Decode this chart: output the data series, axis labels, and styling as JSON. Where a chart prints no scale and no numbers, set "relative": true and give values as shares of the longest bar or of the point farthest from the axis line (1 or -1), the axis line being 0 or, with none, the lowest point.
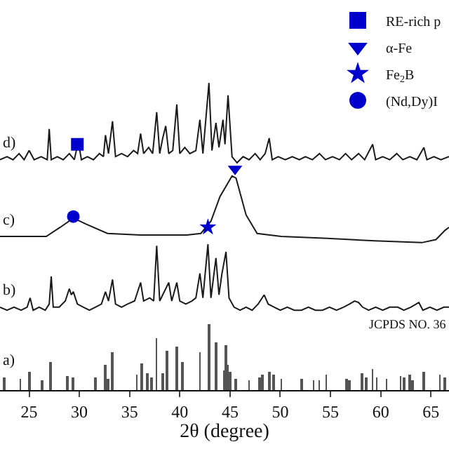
{
  "chart_data": {
    "type": "line",
    "relative": true,
    "xlabel": "2θ (degree)",
    "xlim": [
      22.1,
      66.8
    ],
    "xticks": [
      25,
      30,
      35,
      40,
      45,
      50,
      55,
      60,
      65
    ],
    "legend": "top right",
    "series": [
      {
        "name": "d)",
        "color": "#1a1a1a",
        "x": [
          22.1,
          22.8,
          23.4,
          24.0,
          24.5,
          25.0,
          25.5,
          26.2,
          26.8,
          27.0,
          27.2,
          27.8,
          28.4,
          29.0,
          29.5,
          29.9,
          30.2,
          30.8,
          31.4,
          32.0,
          32.4,
          32.6,
          32.9,
          33.3,
          33.6,
          34.2,
          34.8,
          35.4,
          35.8,
          36.1,
          36.4,
          36.9,
          37.3,
          37.7,
          38.0,
          38.3,
          38.6,
          38.9,
          39.3,
          39.7,
          40.0,
          40.5,
          41.0,
          41.6,
          42.0,
          42.3,
          42.9,
          43.2,
          43.6,
          43.9,
          44.3,
          44.5,
          44.8,
          45.2,
          45.7,
          46.3,
          46.9,
          47.5,
          48.0,
          48.5,
          48.9,
          49.2,
          49.8,
          50.5,
          51.2,
          51.9,
          52.5,
          53.2,
          53.9,
          54.5,
          55.2,
          55.9,
          56.5,
          57.1,
          57.8,
          58.4,
          59.2,
          59.5,
          60.2,
          60.9,
          61.6,
          62.2,
          62.9,
          63.6,
          64.3,
          64.6,
          65.3,
          66.0,
          66.8
        ],
        "values": [
          0.75,
          0.76,
          0.75,
          0.77,
          0.75,
          0.78,
          0.75,
          0.76,
          0.75,
          0.85,
          0.75,
          0.76,
          0.75,
          0.77,
          0.75,
          0.81,
          0.75,
          0.76,
          0.75,
          0.77,
          0.76,
          0.83,
          0.77,
          0.875,
          0.76,
          0.77,
          0.76,
          0.78,
          0.77,
          0.835,
          0.77,
          0.79,
          0.77,
          0.905,
          0.77,
          0.82,
          0.86,
          0.77,
          0.78,
          0.93,
          0.77,
          0.79,
          0.77,
          0.78,
          0.88,
          0.77,
          1.0,
          0.78,
          0.87,
          0.79,
          0.88,
          0.8,
          0.96,
          0.76,
          0.74,
          0.76,
          0.75,
          0.77,
          0.75,
          0.77,
          0.82,
          0.75,
          0.76,
          0.75,
          0.76,
          0.75,
          0.76,
          0.75,
          0.77,
          0.75,
          0.76,
          0.75,
          0.77,
          0.75,
          0.77,
          0.75,
          0.8,
          0.75,
          0.76,
          0.75,
          0.77,
          0.75,
          0.76,
          0.75,
          0.79,
          0.75,
          0.76,
          0.75,
          0.76
        ]
      },
      {
        "name": "c)",
        "color": "#1a1a1a",
        "x": [
          22.1,
          26.7,
          28.1,
          29.4,
          30.7,
          32.8,
          36.1,
          40.7,
          42.1,
          43.1,
          44.0,
          45.2,
          45.6,
          46.6,
          47.7,
          50.1,
          54.7,
          59.4,
          64.1,
          65.5,
          66.4,
          66.8
        ],
        "values": [
          0.5,
          0.5,
          0.53,
          0.56,
          0.54,
          0.51,
          0.505,
          0.505,
          0.51,
          0.55,
          0.63,
          0.697,
          0.69,
          0.57,
          0.51,
          0.5,
          0.494,
          0.486,
          0.48,
          0.49,
          0.52,
          0.53
        ]
      },
      {
        "name": "b)",
        "color": "#1a1a1a",
        "x": [
          22.1,
          22.8,
          23.5,
          24.2,
          24.8,
          25.1,
          25.4,
          26.0,
          26.6,
          27.0,
          27.2,
          27.4,
          28.0,
          28.6,
          29.0,
          29.2,
          29.4,
          29.8,
          30.4,
          31.0,
          31.6,
          32.2,
          32.6,
          32.9,
          33.3,
          33.6,
          34.2,
          34.8,
          35.5,
          36.1,
          36.4,
          37.0,
          37.4,
          37.7,
          38.0,
          38.3,
          38.9,
          39.2,
          39.7,
          40.0,
          40.6,
          41.2,
          41.6,
          42.0,
          42.3,
          42.8,
          43.1,
          43.6,
          43.9,
          44.2,
          44.6,
          44.9,
          45.4,
          46.0,
          46.6,
          47.2,
          47.8,
          48.4,
          48.8,
          49.4,
          50.0,
          50.7,
          51.4,
          52.1,
          52.8,
          53.5,
          54.2,
          54.9,
          55.6,
          56.3,
          56.9,
          57.4,
          57.8,
          58.2,
          58.8,
          59.5,
          60.2,
          60.9,
          61.7,
          62.3,
          63.0,
          63.8,
          64.2,
          64.9,
          65.6,
          66.3,
          66.8
        ],
        "values": [
          0.27,
          0.26,
          0.27,
          0.26,
          0.27,
          0.3,
          0.26,
          0.27,
          0.26,
          0.28,
          0.37,
          0.27,
          0.27,
          0.29,
          0.33,
          0.31,
          0.32,
          0.28,
          0.27,
          0.26,
          0.27,
          0.28,
          0.32,
          0.29,
          0.36,
          0.28,
          0.27,
          0.28,
          0.29,
          0.35,
          0.29,
          0.3,
          0.29,
          0.47,
          0.29,
          0.31,
          0.35,
          0.29,
          0.35,
          0.29,
          0.28,
          0.29,
          0.3,
          0.38,
          0.3,
          0.475,
          0.3,
          0.43,
          0.31,
          0.38,
          0.45,
          0.3,
          0.27,
          0.26,
          0.27,
          0.26,
          0.28,
          0.31,
          0.28,
          0.27,
          0.26,
          0.27,
          0.26,
          0.26,
          0.27,
          0.26,
          0.26,
          0.27,
          0.26,
          0.27,
          0.28,
          0.29,
          0.285,
          0.27,
          0.26,
          0.27,
          0.26,
          0.27,
          0.27,
          0.26,
          0.27,
          0.285,
          0.26,
          0.27,
          0.26,
          0.27,
          0.27
        ]
      },
      {
        "type": "bar",
        "name": "a)",
        "color": "#555555",
        "x": [
          22.5,
          24.1,
          25.0,
          26.3,
          27.1,
          28.8,
          29.4,
          31.6,
          32.6,
          32.9,
          33.3,
          35.7,
          36.2,
          36.8,
          37.2,
          37.7,
          38.3,
          38.7,
          39.7,
          40.3,
          42.0,
          42.9,
          43.6,
          44.4,
          44.6,
          44.8,
          45.0,
          45.6,
          46.9,
          47.9,
          48.2,
          48.9,
          49.3,
          50.1,
          52.1,
          53.3,
          53.9,
          54.6,
          56.6,
          56.9,
          58.1,
          58.6,
          59.2,
          59.6,
          60.6,
          62.0,
          62.3,
          62.9,
          63.2,
          64.3,
          65.9,
          66.4
        ],
        "values": [
          0.04,
          0.035,
          0.06,
          0.03,
          0.09,
          0.045,
          0.04,
          0.04,
          0.08,
          0.035,
          0.125,
          0.05,
          0.085,
          0.055,
          0.04,
          0.17,
          0.055,
          0.13,
          0.14,
          0.09,
          0.125,
          0.215,
          0.155,
          0.065,
          0.145,
          0.08,
          0.06,
          0.035,
          0.03,
          0.04,
          0.05,
          0.06,
          0.05,
          0.035,
          0.035,
          0.03,
          0.03,
          0.05,
          0.035,
          0.03,
          0.055,
          0.04,
          0.07,
          0.04,
          0.035,
          0.045,
          0.04,
          0.05,
          0.03,
          0.06,
          0.05,
          0.04
        ]
      },
      {
        "type": "scatter",
        "name": "RE-rich p",
        "color": "#0000cc",
        "marker": "square",
        "x": [
          29.8
        ],
        "values": [
          0.8
        ]
      },
      {
        "type": "scatter",
        "name": "α-Fe",
        "color": "#0000cc",
        "marker": "triangle",
        "x": [
          45.5
        ],
        "values": [
          0.72
        ]
      },
      {
        "type": "scatter",
        "name": "Fe$_{2}$B",
        "color": "#0000cc",
        "marker": "star",
        "x": [
          42.8
        ],
        "values": [
          0.53
        ]
      },
      {
        "type": "scatter",
        "name": "(Nd,Dy)I",
        "color": "#0000cc",
        "marker": "circle",
        "x": [
          29.4
        ],
        "values": [
          0.565
        ]
      }
    ],
    "annotations": [
      "JCPDS NO. 36"
    ]
  }
}
